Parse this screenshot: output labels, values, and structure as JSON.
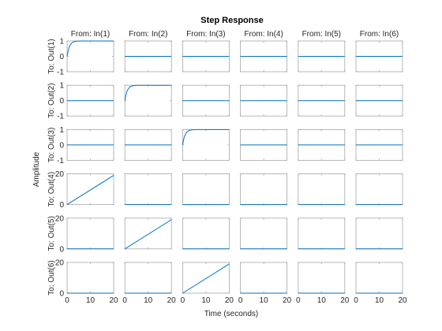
{
  "chart_data": {
    "type": "line",
    "title": "Step Response",
    "xlabel": "Time (seconds)",
    "ylabel": "Amplitude",
    "column_titles": [
      "From: In(1)",
      "From: In(2)",
      "From: In(3)",
      "From: In(4)",
      "From: In(5)",
      "From: In(6)"
    ],
    "row_titles": [
      "To: Out(1)",
      "To: Out(2)",
      "To: Out(3)",
      "To: Out(4)",
      "To: Out(5)",
      "To: Out(6)"
    ],
    "xlim": [
      0,
      20
    ],
    "x_ticks": [
      0,
      10,
      20
    ],
    "row_ylims": [
      [
        -1,
        1
      ],
      [
        -1,
        1
      ],
      [
        -1,
        1
      ],
      [
        0,
        20
      ],
      [
        0,
        20
      ],
      [
        0,
        20
      ]
    ],
    "row_yticks": [
      [
        -1,
        0,
        1
      ],
      [
        -1,
        0,
        1
      ],
      [
        -1,
        0,
        1
      ],
      [
        0,
        20
      ],
      [
        0,
        20
      ],
      [
        0,
        20
      ]
    ],
    "line_color": "#0072bd",
    "grid": false,
    "responses": [
      {
        "row": 1,
        "col": 1,
        "shape": "first-order",
        "final_value": 1,
        "x": [
          0,
          1,
          2,
          3,
          4,
          6,
          8,
          10,
          15,
          20
        ],
        "y": [
          0,
          0.63,
          0.86,
          0.95,
          0.98,
          1,
          1,
          1,
          1,
          1
        ]
      },
      {
        "row": 2,
        "col": 2,
        "shape": "first-order",
        "final_value": 1,
        "x": [
          0,
          1,
          2,
          3,
          4,
          6,
          8,
          10,
          15,
          20
        ],
        "y": [
          0,
          0.63,
          0.86,
          0.95,
          0.98,
          1,
          1,
          1,
          1,
          1
        ]
      },
      {
        "row": 3,
        "col": 3,
        "shape": "first-order",
        "final_value": 1,
        "x": [
          0,
          1,
          2,
          3,
          4,
          6,
          8,
          10,
          15,
          20
        ],
        "y": [
          0,
          0.63,
          0.86,
          0.95,
          0.98,
          1,
          1,
          1,
          1,
          1
        ]
      },
      {
        "row": 4,
        "col": 1,
        "shape": "ramp",
        "x": [
          0,
          20
        ],
        "y": [
          0,
          19
        ]
      },
      {
        "row": 5,
        "col": 2,
        "shape": "ramp",
        "x": [
          0,
          20
        ],
        "y": [
          0,
          19
        ]
      },
      {
        "row": 6,
        "col": 3,
        "shape": "ramp",
        "x": [
          0,
          20
        ],
        "y": [
          0,
          19
        ]
      }
    ],
    "other_cells": "zero response (y = 0 for all t)"
  }
}
